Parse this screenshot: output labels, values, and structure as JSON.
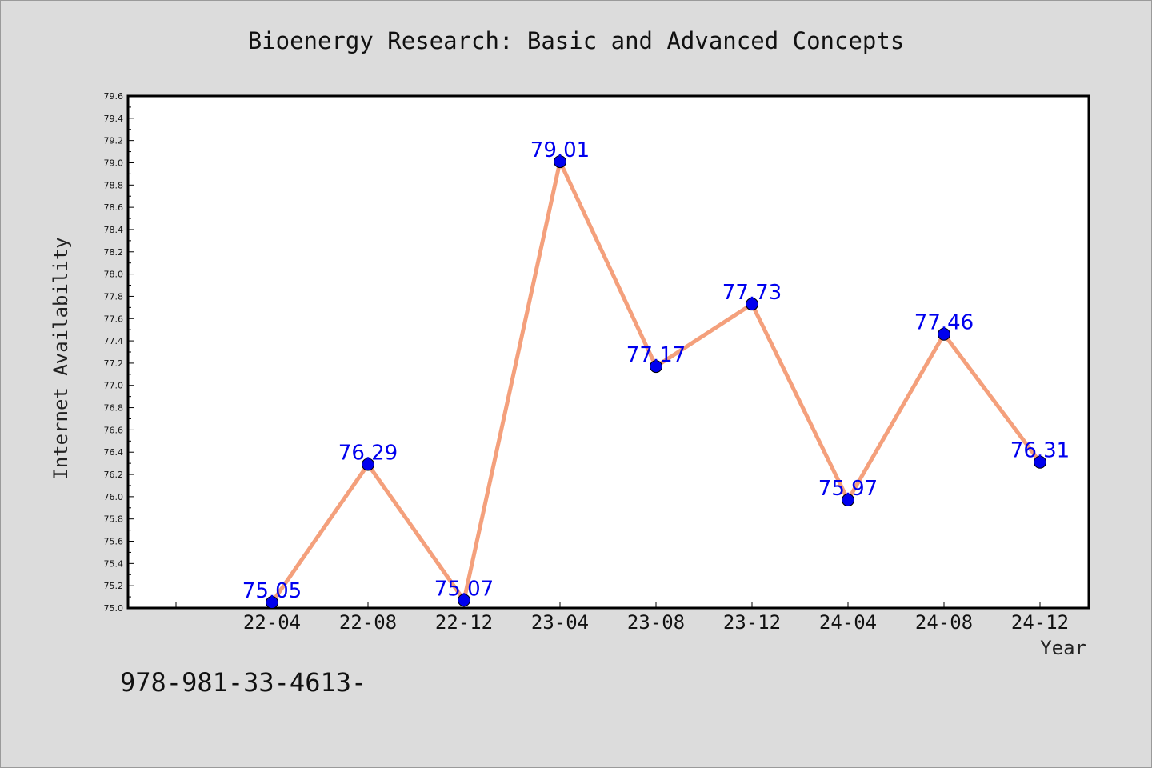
{
  "chart_data": {
    "type": "line",
    "title": "Bioenergy Research: Basic and Advanced Concepts",
    "xlabel": "Year",
    "ylabel": "Internet Availability",
    "categories": [
      "22-04",
      "22-08",
      "22-12",
      "23-04",
      "23-08",
      "23-12",
      "24-04",
      "24-08",
      "24-12"
    ],
    "series": [
      {
        "values": [
          75.05,
          76.29,
          75.07,
          79.01,
          77.17,
          77.73,
          75.97,
          77.46,
          76.31
        ],
        "labels": [
          "75.05",
          "76.29",
          "75.07",
          "79.01",
          "77.17",
          "77.73",
          "75.97",
          "77.46",
          "76.31"
        ],
        "line_color": "#f4a07c",
        "marker_color": "#0000ee",
        "label_color": "#0000ee"
      }
    ],
    "ylim": [
      75.0,
      79.6
    ],
    "yticks": [
      "75.0",
      "75.2",
      "75.4",
      "75.6",
      "75.8",
      "76.0",
      "76.2",
      "76.4",
      "76.6",
      "76.8",
      "77.0",
      "77.2",
      "77.4",
      "77.6",
      "77.8",
      "78.0",
      "78.2",
      "78.4",
      "78.6",
      "78.8",
      "79.0",
      "79.2",
      "79.4",
      "79.6"
    ],
    "grid": false,
    "legend": false
  },
  "footer": {
    "code": "978-981-33-4613-"
  },
  "colors": {
    "background": "#dcdcdc",
    "plot_background": "#ffffff",
    "axis": "#000000"
  }
}
